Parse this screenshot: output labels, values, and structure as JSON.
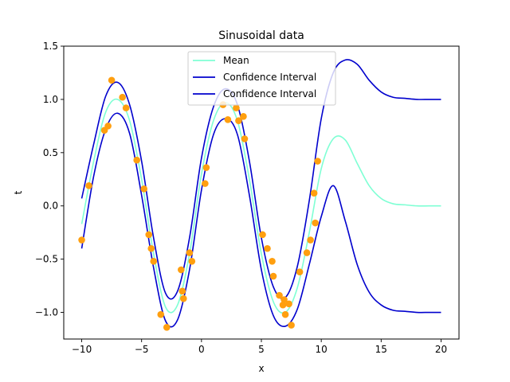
{
  "chart_data": {
    "type": "line",
    "title": "Sinusoidal data",
    "xlabel": "x",
    "ylabel": "t",
    "xlim": [
      -11.5,
      21.5
    ],
    "ylim": [
      -1.25,
      1.5
    ],
    "xticks": [
      -10,
      -5,
      0,
      5,
      10,
      15,
      20
    ],
    "xtick_labels": [
      "−10",
      "−5",
      "0",
      "5",
      "10",
      "15",
      "20"
    ],
    "yticks": [
      -1.0,
      -0.5,
      0.0,
      0.5,
      1.0,
      1.5
    ],
    "ytick_labels": [
      "−1.0",
      "−0.5",
      "0.0",
      "0.5",
      "1.0",
      "1.5"
    ],
    "grid": false,
    "legend_position": "top-center",
    "legend": [
      {
        "label": "Mean",
        "color": "#7fffd4"
      },
      {
        "label": "Confidence Interval",
        "color": "#0000cd"
      },
      {
        "label": "Confidence Interval",
        "color": "#0000cd"
      }
    ],
    "series": [
      {
        "color": "#7fffd4",
        "x": [
          -10,
          -9,
          -8,
          -7,
          -6,
          -5,
          -4,
          -3,
          -2,
          -1,
          0,
          1,
          2,
          3,
          4,
          5,
          6,
          7,
          8,
          9,
          10,
          11,
          12,
          13,
          14,
          15,
          16,
          17,
          18,
          19,
          20
        ],
        "y": [
          -0.17,
          0.42,
          0.88,
          1.0,
          0.8,
          0.25,
          -0.45,
          -0.95,
          -0.93,
          -0.45,
          0.3,
          0.8,
          0.97,
          0.8,
          0.25,
          -0.45,
          -0.9,
          -1.0,
          -0.77,
          -0.25,
          0.35,
          0.63,
          0.62,
          0.4,
          0.19,
          0.07,
          0.02,
          0.01,
          0.0,
          0.0,
          0.0
        ]
      },
      {
        "color": "#0000cd",
        "x": [
          -10,
          -9,
          -8,
          -7,
          -6,
          -5,
          -4,
          -3,
          -2,
          -1,
          0,
          1,
          2,
          3,
          4,
          5,
          6,
          7,
          8,
          9,
          10,
          11,
          12,
          13,
          14,
          15,
          16,
          17,
          18,
          19,
          20
        ],
        "y": [
          0.07,
          0.58,
          1.03,
          1.16,
          0.95,
          0.42,
          -0.3,
          -0.82,
          -0.8,
          -0.3,
          0.45,
          0.93,
          1.1,
          0.95,
          0.42,
          -0.3,
          -0.76,
          -0.86,
          -0.57,
          0.05,
          0.82,
          1.25,
          1.37,
          1.33,
          1.18,
          1.07,
          1.02,
          1.01,
          1.0,
          1.0,
          1.0
        ]
      },
      {
        "color": "#0000cd",
        "x": [
          -10,
          -9,
          -8,
          -7,
          -6,
          -5,
          -4,
          -3,
          -2,
          -1,
          0,
          1,
          2,
          3,
          4,
          5,
          6,
          7,
          8,
          9,
          10,
          11,
          12,
          13,
          14,
          15,
          16,
          17,
          18,
          19,
          20
        ],
        "y": [
          -0.4,
          0.28,
          0.72,
          0.87,
          0.68,
          0.1,
          -0.58,
          -1.08,
          -1.07,
          -0.6,
          0.15,
          0.67,
          0.82,
          0.67,
          0.1,
          -0.6,
          -1.03,
          -1.13,
          -0.97,
          -0.55,
          -0.1,
          0.19,
          -0.14,
          -0.55,
          -0.81,
          -0.93,
          -0.98,
          -0.99,
          -1.0,
          -1.0,
          -1.0
        ]
      }
    ],
    "points": {
      "color": "#ff9f0f",
      "x": [
        -10,
        -9.4,
        -8.1,
        -7.8,
        -7.5,
        -6.6,
        -6.3,
        -5.4,
        -4.8,
        -4.4,
        -4.2,
        -4.0,
        -3.4,
        -2.9,
        -1.7,
        -1.6,
        -1.5,
        -1.0,
        -0.8,
        0.3,
        0.4,
        1.8,
        2.2,
        2.9,
        3.1,
        3.5,
        3.6,
        5.1,
        5.5,
        5.9,
        6.0,
        6.5,
        6.8,
        6.9,
        7.0,
        7.3,
        7.5,
        8.2,
        8.8,
        9.1,
        9.4,
        9.5,
        9.7
      ],
      "y": [
        -0.32,
        0.19,
        0.71,
        0.75,
        1.18,
        1.02,
        0.92,
        0.43,
        0.16,
        -0.27,
        -0.4,
        -0.52,
        -1.02,
        -1.14,
        -0.6,
        -0.8,
        -0.87,
        -0.44,
        -0.52,
        0.21,
        0.36,
        0.95,
        0.81,
        0.92,
        0.8,
        0.84,
        0.63,
        -0.27,
        -0.4,
        -0.52,
        -0.66,
        -0.84,
        -0.93,
        -0.88,
        -1.02,
        -0.92,
        -1.12,
        -0.62,
        -0.44,
        -0.32,
        0.12,
        -0.16,
        0.42
      ]
    }
  }
}
